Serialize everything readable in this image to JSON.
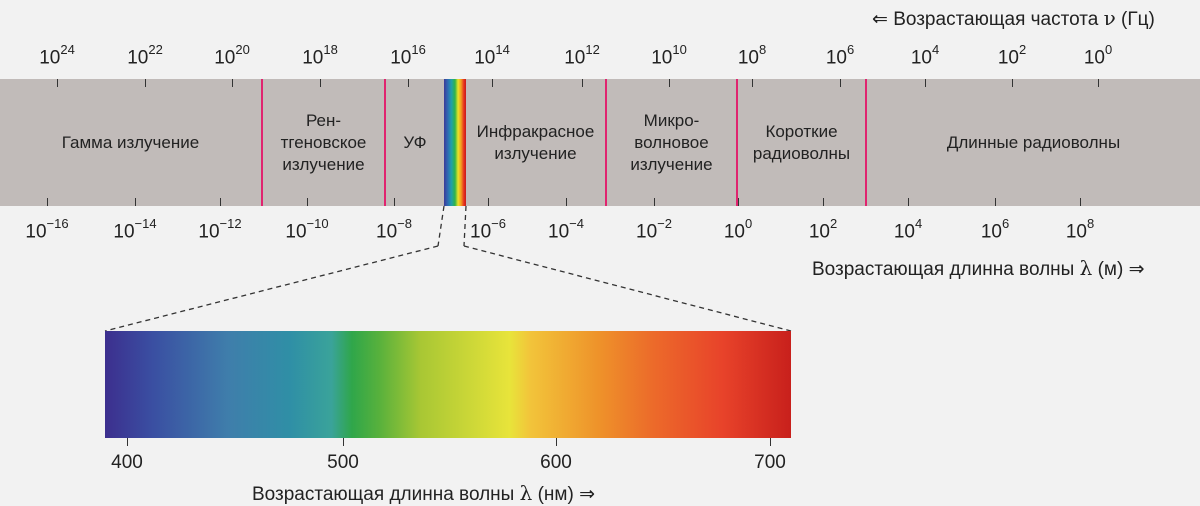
{
  "frequency_axis": {
    "label_prefix": "⇐ Возрастающая частота ",
    "label_symbol": "ν",
    "label_unit": " (Гц)",
    "ticks": [
      {
        "base": "10",
        "exp": "24"
      },
      {
        "base": "10",
        "exp": "22"
      },
      {
        "base": "10",
        "exp": "20"
      },
      {
        "base": "10",
        "exp": "18"
      },
      {
        "base": "10",
        "exp": "16"
      },
      {
        "base": "10",
        "exp": "14"
      },
      {
        "base": "10",
        "exp": "12"
      },
      {
        "base": "10",
        "exp": "10"
      },
      {
        "base": "10",
        "exp": "8"
      },
      {
        "base": "10",
        "exp": "6"
      },
      {
        "base": "10",
        "exp": "4"
      },
      {
        "base": "10",
        "exp": "2"
      },
      {
        "base": "10",
        "exp": "0"
      }
    ]
  },
  "wavelength_axis": {
    "label_prefix": "Возрастающая длинна волны ",
    "label_symbol": "λ",
    "label_unit": " (м) ⇒",
    "ticks": [
      {
        "base": "10",
        "exp": "−16"
      },
      {
        "base": "10",
        "exp": "−14"
      },
      {
        "base": "10",
        "exp": "−12"
      },
      {
        "base": "10",
        "exp": "−10"
      },
      {
        "base": "10",
        "exp": "−8"
      },
      {
        "base": "10",
        "exp": "−6"
      },
      {
        "base": "10",
        "exp": "−4"
      },
      {
        "base": "10",
        "exp": "−2"
      },
      {
        "base": "10",
        "exp": "0"
      },
      {
        "base": "10",
        "exp": "2"
      },
      {
        "base": "10",
        "exp": "4"
      },
      {
        "base": "10",
        "exp": "6"
      },
      {
        "base": "10",
        "exp": "8"
      }
    ]
  },
  "regions": [
    {
      "name": "Гамма излучение"
    },
    {
      "name": "Рен-\nтгеновское\nизлучение"
    },
    {
      "name": "УФ"
    },
    {
      "name": "Инфракрасное\nизлучение"
    },
    {
      "name": "Микро-\nволновое\nизлучение"
    },
    {
      "name": "Короткие\nрадиоволны"
    },
    {
      "name": "Длинные радиоволны"
    }
  ],
  "colors": {
    "band": "#c1bbb9",
    "boundary": "#e0246f",
    "background": "#f2f2f2"
  },
  "visible_spectrum": {
    "ticks": [
      "400",
      "500",
      "600",
      "700"
    ],
    "axis_label_prefix": "Возрастающая длинна волны ",
    "axis_label_symbol": "λ",
    "axis_label_unit": " (нм) ⇒"
  }
}
